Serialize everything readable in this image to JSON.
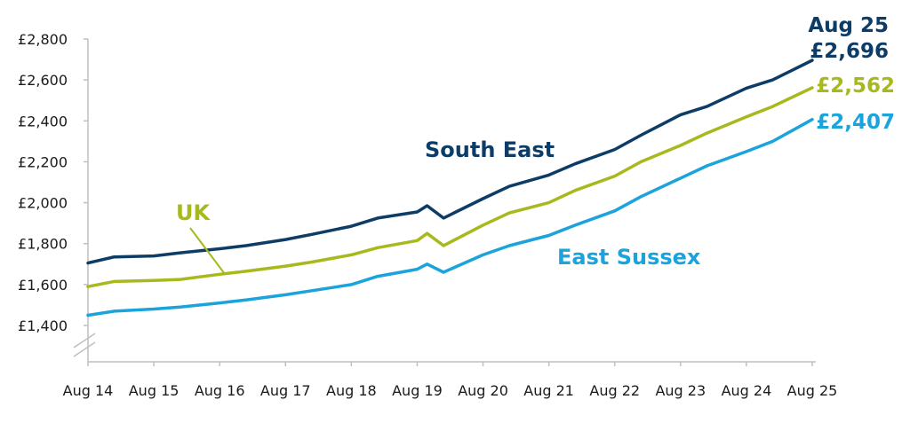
{
  "chart_data": {
    "type": "line",
    "x_ticks": [
      "Aug 14",
      "Aug 15",
      "Aug 16",
      "Aug 17",
      "Aug 18",
      "Aug 19",
      "Aug 20",
      "Aug 21",
      "Aug 22",
      "Aug 23",
      "Aug 24",
      "Aug 25"
    ],
    "y_ticks": [
      "£1,400",
      "£1,600",
      "£1,800",
      "£2,000",
      "£2,200",
      "£2,400",
      "£2,600",
      "£2,800"
    ],
    "ylim": [
      1400,
      2800
    ],
    "axis_break": true,
    "grid": false,
    "series": [
      {
        "name": "South East",
        "color": "#0d3d66",
        "x": [
          2014.6,
          2015.0,
          2015.6,
          2016.0,
          2016.6,
          2017.0,
          2017.6,
          2018.0,
          2018.6,
          2019.0,
          2019.6,
          2019.75,
          2020.0,
          2020.6,
          2021.0,
          2021.6,
          2022.0,
          2022.6,
          2023.0,
          2023.6,
          2024.0,
          2024.6,
          2025.0,
          2025.6
        ],
        "values": [
          1705,
          1735,
          1740,
          1755,
          1775,
          1790,
          1820,
          1845,
          1885,
          1925,
          1955,
          1985,
          1925,
          2020,
          2080,
          2135,
          2190,
          2260,
          2330,
          2430,
          2470,
          2560,
          2600,
          2696
        ]
      },
      {
        "name": "UK",
        "color": "#a8b91e",
        "x": [
          2014.6,
          2015.0,
          2015.6,
          2016.0,
          2016.6,
          2017.0,
          2017.6,
          2018.0,
          2018.6,
          2019.0,
          2019.6,
          2019.75,
          2020.0,
          2020.6,
          2021.0,
          2021.6,
          2022.0,
          2022.6,
          2023.0,
          2023.6,
          2024.0,
          2024.6,
          2025.0,
          2025.6
        ],
        "values": [
          1590,
          1615,
          1620,
          1625,
          1650,
          1665,
          1690,
          1710,
          1745,
          1780,
          1815,
          1850,
          1790,
          1890,
          1950,
          2000,
          2060,
          2130,
          2200,
          2280,
          2340,
          2420,
          2470,
          2562
        ]
      },
      {
        "name": "East Sussex",
        "color": "#1ba3dc",
        "x": [
          2014.6,
          2015.0,
          2015.6,
          2016.0,
          2016.6,
          2017.0,
          2017.6,
          2018.0,
          2018.6,
          2019.0,
          2019.6,
          2019.75,
          2020.0,
          2020.6,
          2021.0,
          2021.6,
          2022.0,
          2022.6,
          2023.0,
          2023.6,
          2024.0,
          2024.6,
          2025.0,
          2025.6
        ],
        "values": [
          1450,
          1470,
          1480,
          1490,
          1510,
          1525,
          1550,
          1570,
          1600,
          1640,
          1675,
          1700,
          1660,
          1745,
          1790,
          1840,
          1890,
          1960,
          2030,
          2120,
          2180,
          2250,
          2300,
          2407
        ]
      }
    ],
    "labels": {
      "south_east": "South East",
      "uk": "UK",
      "east_sussex": "East Sussex",
      "end_date": "Aug 25",
      "end_south_east": "£2,696",
      "end_uk": "£2,562",
      "end_east_sussex": "£2,407"
    }
  }
}
